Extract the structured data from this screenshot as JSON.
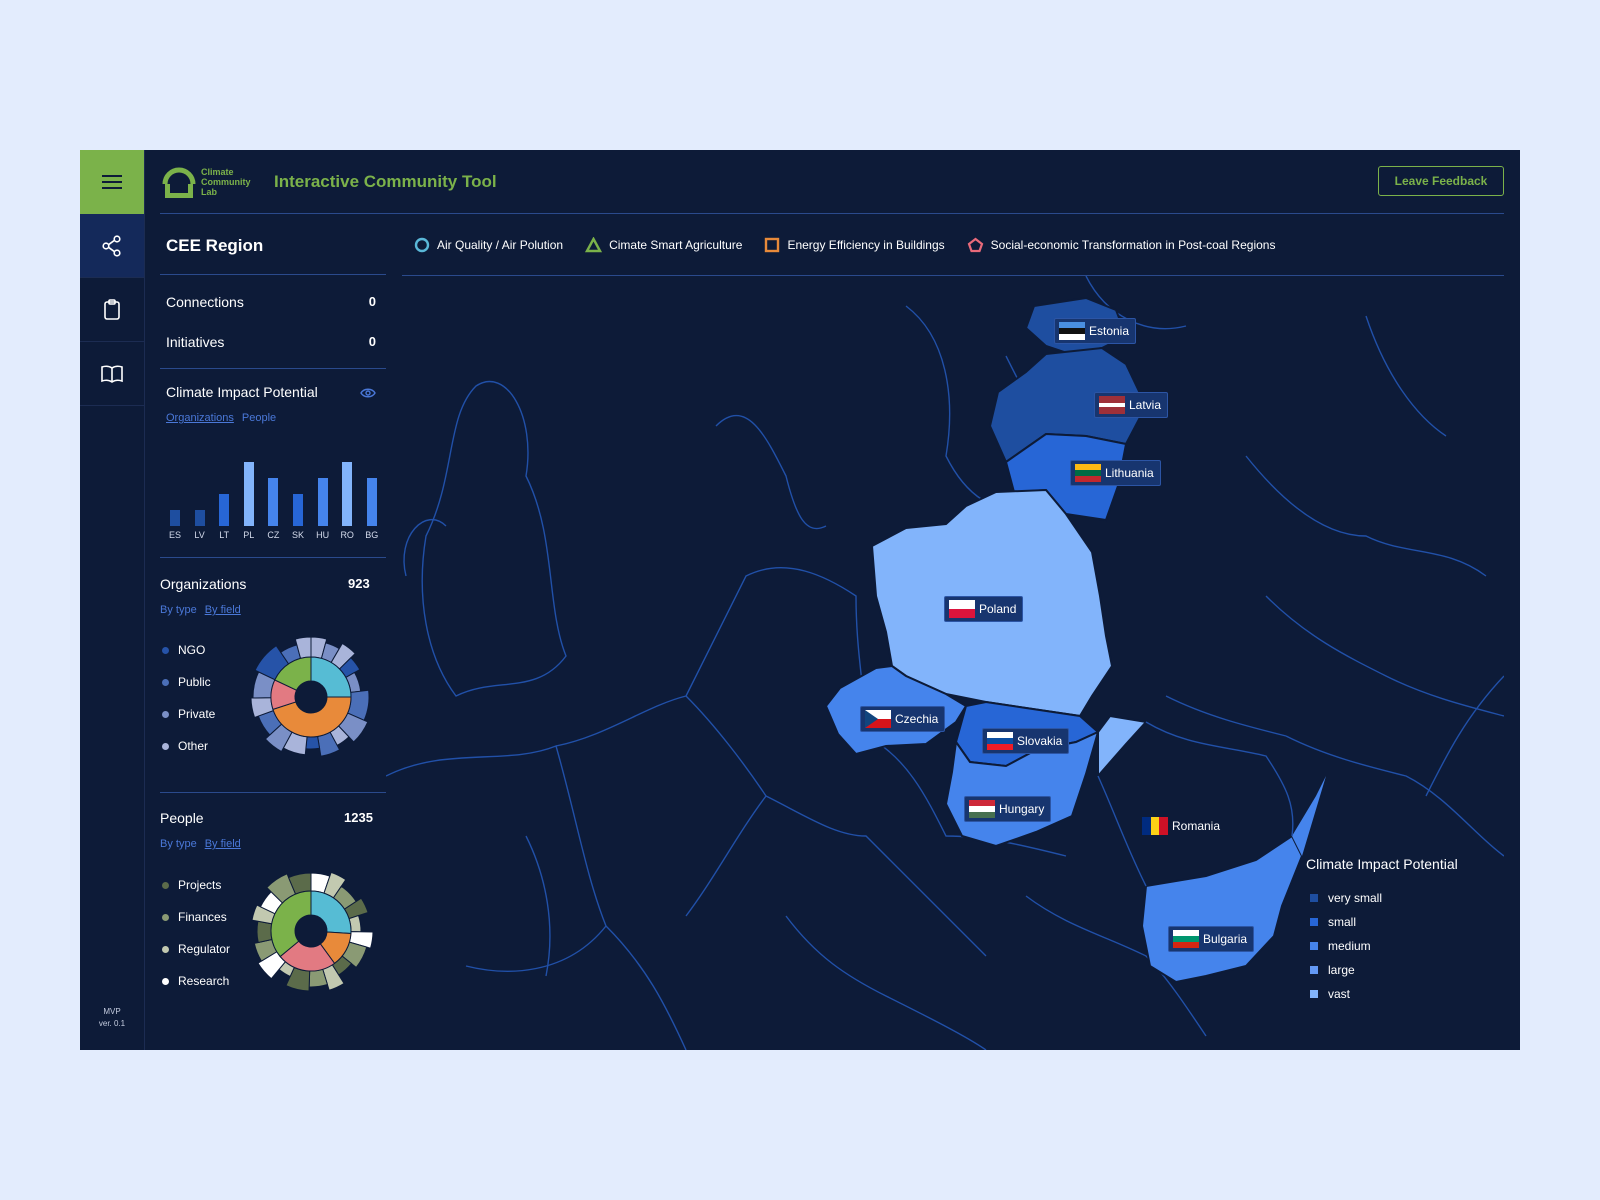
{
  "app": {
    "logo_line1": "Climate",
    "logo_line2": "Community",
    "logo_line3": "Lab",
    "title": "Interactive Community Tool",
    "feedback_label": "Leave Feedback",
    "version_line1": "MVP",
    "version_line2": "ver. 0.1"
  },
  "colors": {
    "accent": "#7bb24a",
    "background": "#0d1b38",
    "border": "#2a4a8c"
  },
  "nav": {
    "items": [
      {
        "icon": "share-icon"
      },
      {
        "icon": "clipboard-icon"
      },
      {
        "icon": "book-icon"
      }
    ]
  },
  "panel": {
    "region": "CEE Region",
    "connections_label": "Connections",
    "connections_value": "0",
    "initiatives_label": "Initiatives",
    "initiatives_value": "0",
    "impact": {
      "title": "Climate Impact Potential",
      "tab_organizations": "Organizations",
      "tab_people": "People"
    },
    "organizations": {
      "title": "Organizations",
      "count": "923",
      "tab_type": "By type",
      "tab_field": "By field",
      "legend": [
        "NGO",
        "Public",
        "Private",
        "Other"
      ]
    },
    "people": {
      "title": "People",
      "count": "1235",
      "tab_type": "By type",
      "tab_field": "By field",
      "legend": [
        "Projects",
        "Finances",
        "Regulator",
        "Research"
      ]
    }
  },
  "chart_data": {
    "type": "bar",
    "categories": [
      "ES",
      "LV",
      "LT",
      "PL",
      "CZ",
      "SK",
      "HU",
      "RO",
      "BG"
    ],
    "values": [
      1,
      1,
      2,
      4,
      3,
      2,
      3,
      4,
      3
    ],
    "title": "",
    "xlabel": "",
    "ylabel": "",
    "ylim": [
      0,
      4
    ]
  },
  "filters": [
    {
      "label": "Air Quality / Air Polution",
      "icon": "circle-icon"
    },
    {
      "label": "Cimate Smart Agriculture",
      "icon": "triangle-icon"
    },
    {
      "label": "Energy Efficiency in Buildings",
      "icon": "square-icon"
    },
    {
      "label": "Social-economic Transformation in Post-coal Regions",
      "icon": "pentagon-icon"
    }
  ],
  "map": {
    "countries": {
      "estonia": "Estonia",
      "latvia": "Latvia",
      "lithuania": "Lithuania",
      "poland": "Poland",
      "czechia": "Czechia",
      "slovakia": "Slovakia",
      "hungary": "Hungary",
      "romania": "Romania",
      "bulgaria": "Bulgaria"
    },
    "legend_title": "Climate Impact Potential",
    "legend": [
      "very small",
      "small",
      "medium",
      "large",
      "vast"
    ]
  }
}
